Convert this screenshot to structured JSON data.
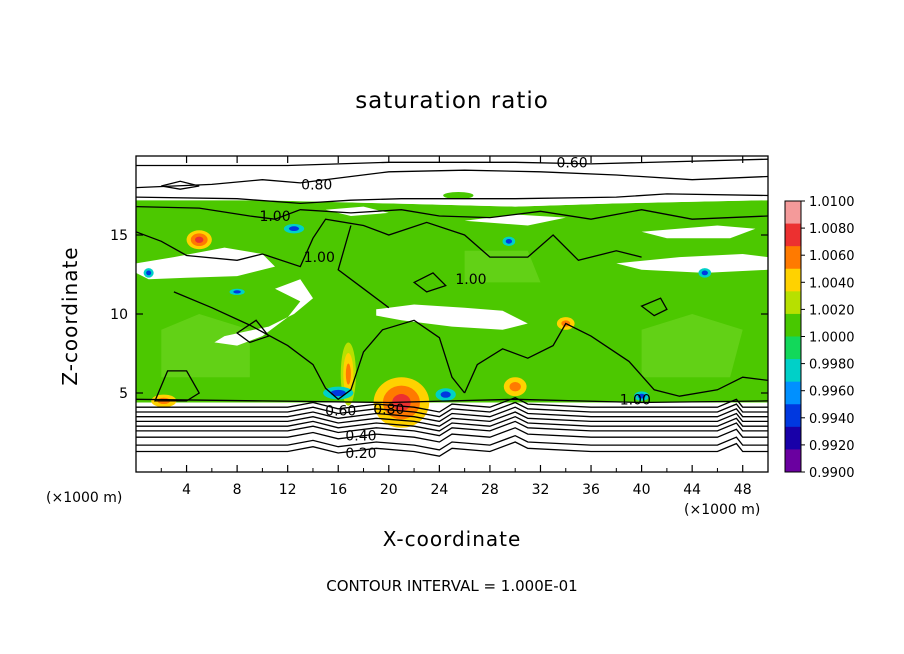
{
  "chart_data": {
    "type": "heatmap",
    "title": "saturation ratio",
    "xlabel": "X-coordinate",
    "ylabel": "Z-coordinate",
    "x_unit": "(×1000 m)",
    "xlim": [
      0,
      50
    ],
    "ylim": [
      0,
      20
    ],
    "x_ticks": [
      4,
      8,
      12,
      16,
      20,
      24,
      28,
      32,
      36,
      40,
      44,
      48
    ],
    "y_ticks": [
      5,
      10,
      15
    ],
    "colorbar": {
      "levels": [
        "1.0100",
        "1.0080",
        "1.0060",
        "1.0040",
        "1.0020",
        "1.0000",
        "0.9980",
        "0.9960",
        "0.9940",
        "0.9920",
        "0.9900"
      ],
      "colors": [
        "#f49a9a",
        "#ec3030",
        "#ff7a00",
        "#ffd200",
        "#b7e000",
        "#48c800",
        "#12d85a",
        "#00d0c8",
        "#0090ff",
        "#0038e0",
        "#1800a8",
        "#6a00a0"
      ]
    },
    "contour_labels": [
      "0.60",
      "0.80",
      "1.00",
      "1.00",
      "1.00",
      "1.00",
      "0.60",
      "0.80",
      "0.40",
      "0.20"
    ],
    "footer": "CONTOUR INTERVAL = 1.000E-01",
    "x_unit_right": "(×1000 m)"
  }
}
